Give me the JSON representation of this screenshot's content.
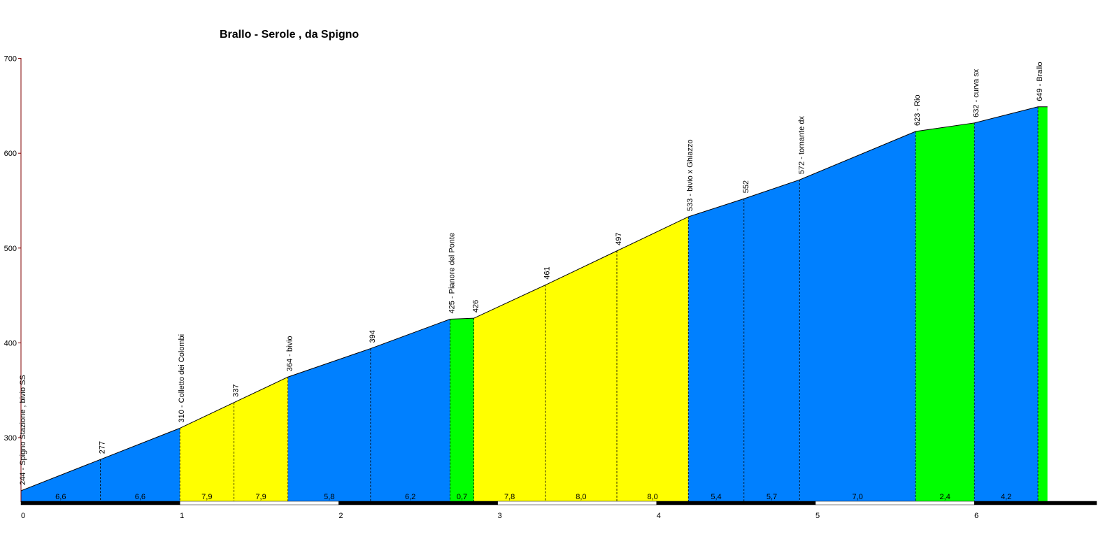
{
  "chart_data": {
    "type": "area",
    "title": "Brallo - Serole , da Spigno",
    "xlabel": "",
    "ylabel": "",
    "xlim": [
      0,
      6.9
    ],
    "ylim": [
      230,
      700
    ],
    "x_ticks": [
      "0",
      "1",
      "2",
      "3",
      "4",
      "5",
      "6"
    ],
    "y_ticks": [
      "300",
      "400",
      "500",
      "600",
      "700"
    ],
    "points": [
      {
        "km": 0.0,
        "alt": 244,
        "label": "244 - Spigno Stazione , bivio SS"
      },
      {
        "km": 0.5,
        "alt": 277,
        "label": "277"
      },
      {
        "km": 1.0,
        "alt": 310,
        "label": "310 - Colletto dei Colombi"
      },
      {
        "km": 1.34,
        "alt": 337,
        "label": "337"
      },
      {
        "km": 1.68,
        "alt": 364,
        "label": "364 - bivio"
      },
      {
        "km": 2.2,
        "alt": 394,
        "label": "394"
      },
      {
        "km": 2.7,
        "alt": 425,
        "label": "425 - Pianore del Ponte"
      },
      {
        "km": 2.85,
        "alt": 426,
        "label": "426"
      },
      {
        "km": 3.3,
        "alt": 461,
        "label": "461"
      },
      {
        "km": 3.75,
        "alt": 497,
        "label": "497"
      },
      {
        "km": 4.2,
        "alt": 533,
        "label": "533 - bivio x Ghiazzo"
      },
      {
        "km": 4.55,
        "alt": 552,
        "label": "552"
      },
      {
        "km": 4.9,
        "alt": 572,
        "label": "572 - tornante dx"
      },
      {
        "km": 5.63,
        "alt": 623,
        "label": "623 - Rio"
      },
      {
        "km": 6.0,
        "alt": 632,
        "label": "632 - curva sx"
      },
      {
        "km": 6.4,
        "alt": 649,
        "label": "649 - Brallo"
      },
      {
        "km": 6.46,
        "alt": 649,
        "label": ""
      }
    ],
    "segments": [
      {
        "gradient": "6,6",
        "color": "blue"
      },
      {
        "gradient": "6,6",
        "color": "blue"
      },
      {
        "gradient": "7,9",
        "color": "yellow"
      },
      {
        "gradient": "7,9",
        "color": "yellow"
      },
      {
        "gradient": "5,8",
        "color": "blue"
      },
      {
        "gradient": "6,2",
        "color": "blue"
      },
      {
        "gradient": "0,7",
        "color": "green"
      },
      {
        "gradient": "7,8",
        "color": "yellow"
      },
      {
        "gradient": "8,0",
        "color": "yellow"
      },
      {
        "gradient": "8,0",
        "color": "yellow"
      },
      {
        "gradient": "5,4",
        "color": "blue"
      },
      {
        "gradient": "5,7",
        "color": "blue"
      },
      {
        "gradient": "7,0",
        "color": "blue"
      },
      {
        "gradient": "2,4",
        "color": "green"
      },
      {
        "gradient": "4,2",
        "color": "blue"
      },
      {
        "gradient": "",
        "color": "green"
      }
    ],
    "colors": {
      "blue": "#0080ff",
      "yellow": "#ffff00",
      "green": "#00ff00",
      "axis": "#800000",
      "line": "#000000"
    },
    "grid": false,
    "legend": "none"
  }
}
